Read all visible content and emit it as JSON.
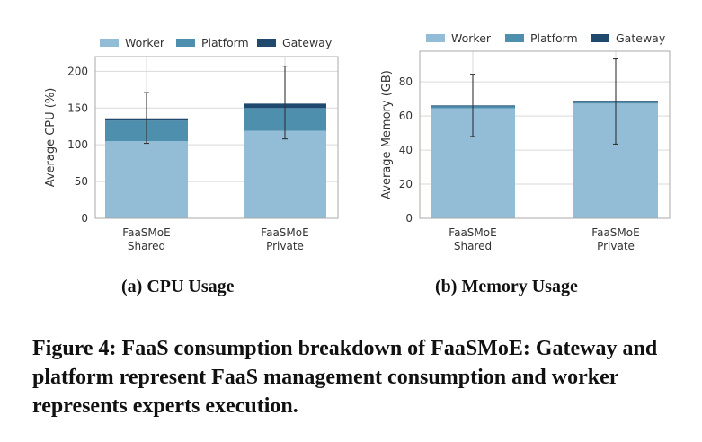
{
  "palette": {
    "Worker": "#93bcd7",
    "Platform": "#4f8fae",
    "Gateway": "#1f4a6e",
    "grid": "#d9d9d9",
    "frame": "#aaaaaa",
    "error": "#333333"
  },
  "chart_data": [
    {
      "type": "bar",
      "stacked": true,
      "categories": [
        [
          "FaaSMoE",
          "Shared"
        ],
        [
          "FaaSMoE",
          "Private"
        ]
      ],
      "series": [
        {
          "name": "Worker",
          "values": [
            105,
            119
          ]
        },
        {
          "name": "Platform",
          "values": [
            28,
            31
          ]
        },
        {
          "name": "Gateway",
          "values": [
            3,
            6
          ]
        }
      ],
      "error_bars": [
        {
          "low": 102,
          "high": 171
        },
        {
          "low": 108,
          "high": 207
        }
      ],
      "ylabel": "Average CPU (%)",
      "ylim": [
        0,
        220
      ],
      "yticks": [
        0,
        50,
        100,
        150,
        200
      ],
      "grid": true,
      "legend": "top",
      "subcaption": "(a) CPU Usage"
    },
    {
      "type": "bar",
      "stacked": true,
      "categories": [
        [
          "FaaSMoE",
          "Shared"
        ],
        [
          "FaaSMoE",
          "Private"
        ]
      ],
      "series": [
        {
          "name": "Worker",
          "values": [
            64.5,
            67.3
          ]
        },
        {
          "name": "Platform",
          "values": [
            1.6,
            1.5
          ]
        },
        {
          "name": "Gateway",
          "values": [
            0.1,
            0.1
          ]
        }
      ],
      "error_bars": [
        {
          "low": 48,
          "high": 84.5
        },
        {
          "low": 43.5,
          "high": 93.5
        }
      ],
      "ylabel": "Average Memory (GB)",
      "ylim": [
        0,
        98
      ],
      "yticks": [
        0,
        20,
        40,
        60,
        80
      ],
      "grid": true,
      "legend": "top",
      "subcaption": "(b) Memory Usage"
    }
  ],
  "figure_caption": "Figure 4: FaaS consumption breakdown of FaaSMoE: Gateway and platform represent FaaS management consumption and worker represents experts execution."
}
